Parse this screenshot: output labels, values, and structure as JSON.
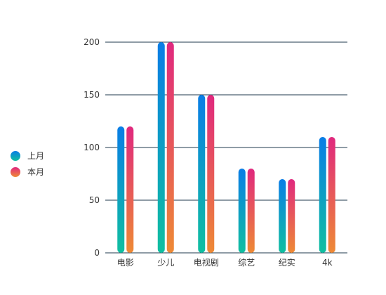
{
  "chart_data": {
    "type": "bar",
    "categories": [
      "电影",
      "少儿",
      "电视剧",
      "综艺",
      "纪实",
      "4k"
    ],
    "series": [
      {
        "name": "上月",
        "values": [
          120,
          200,
          150,
          80,
          70,
          110
        ]
      },
      {
        "name": "本月",
        "values": [
          120,
          200,
          150,
          80,
          70,
          110
        ]
      }
    ],
    "ylim": [
      0,
      200
    ],
    "yticks": [
      0,
      50,
      100,
      150,
      200
    ],
    "grid": true,
    "legend_position": "left",
    "colors": {
      "series_0_top": "#0a7de6",
      "series_0_bottom": "#10bfa0",
      "series_1_top": "#e0287e",
      "series_1_bottom": "#ee8a35",
      "gridline": "#1f3a4d",
      "text": "#333333"
    }
  }
}
